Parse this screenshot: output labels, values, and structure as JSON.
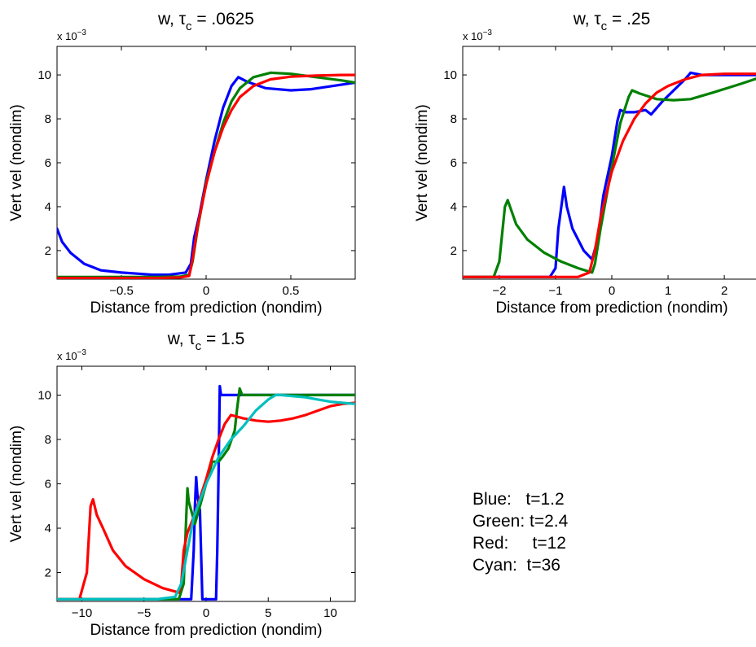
{
  "legend": [
    {
      "name": "Blue",
      "label": "Blue:   t=1.2",
      "color": "#0000ff"
    },
    {
      "name": "Green",
      "label": "Green: t=2.4",
      "color": "#008000"
    },
    {
      "name": "Red",
      "label": "Red:     t=12",
      "color": "#ff0000"
    },
    {
      "name": "Cyan",
      "label": "Cyan:  t=36",
      "color": "#00bfbf"
    }
  ],
  "chart_data": [
    {
      "type": "line",
      "title_main": "w, τ",
      "title_sub": "c",
      "title_tail": " = .0625",
      "xlabel": "Distance from prediction (nondim)",
      "ylabel": "Vert vel (nondim)",
      "exponent_label": "x 10",
      "exponent_power": "−3",
      "xlim": [
        -0.88,
        0.88
      ],
      "ylim": [
        0.7,
        11.3
      ],
      "xticks": [
        -0.5,
        0,
        0.5
      ],
      "xtick_labels": [
        "−0.5",
        "0",
        "0.5"
      ],
      "yticks": [
        2,
        4,
        6,
        8,
        10
      ],
      "ytick_labels": [
        "2",
        "4",
        "6",
        "8",
        "10"
      ],
      "series": [
        {
          "color": "#0000ff",
          "x": [
            -0.88,
            -0.85,
            -0.8,
            -0.72,
            -0.62,
            -0.5,
            -0.4,
            -0.32,
            -0.22,
            -0.12,
            -0.09,
            -0.07,
            -0.04,
            0,
            0.05,
            0.1,
            0.15,
            0.19,
            0.24,
            0.35,
            0.5,
            0.62,
            0.75,
            0.88
          ],
          "y": [
            3.0,
            2.4,
            1.9,
            1.4,
            1.1,
            1.0,
            0.95,
            0.9,
            0.9,
            1.0,
            1.4,
            2.6,
            3.6,
            5.2,
            7.0,
            8.5,
            9.5,
            9.9,
            9.7,
            9.4,
            9.3,
            9.35,
            9.5,
            9.65
          ]
        },
        {
          "color": "#008000",
          "x": [
            -0.88,
            -0.7,
            -0.5,
            -0.3,
            -0.15,
            -0.1,
            -0.08,
            -0.05,
            0,
            0.05,
            0.1,
            0.15,
            0.2,
            0.28,
            0.38,
            0.5,
            0.65,
            0.8,
            0.88
          ],
          "y": [
            0.8,
            0.8,
            0.8,
            0.8,
            0.82,
            0.9,
            1.5,
            3.0,
            5.1,
            6.5,
            7.8,
            8.8,
            9.4,
            9.9,
            10.1,
            10.05,
            9.9,
            9.75,
            9.65
          ]
        },
        {
          "color": "#ff0000",
          "x": [
            -0.88,
            -0.7,
            -0.5,
            -0.3,
            -0.15,
            -0.1,
            -0.08,
            -0.05,
            0,
            0.05,
            0.1,
            0.15,
            0.2,
            0.28,
            0.38,
            0.5,
            0.65,
            0.8,
            0.88
          ],
          "y": [
            0.75,
            0.75,
            0.75,
            0.75,
            0.78,
            0.85,
            1.6,
            3.1,
            5.0,
            6.5,
            7.6,
            8.4,
            9.0,
            9.5,
            9.8,
            9.92,
            9.97,
            10.0,
            10.0
          ]
        }
      ]
    },
    {
      "type": "line",
      "title_main": "w, τ",
      "title_sub": "c",
      "title_tail": " = .25",
      "xlabel": "Distance from prediction (nondim)",
      "ylabel": "Vert vel (nondim)",
      "exponent_label": "x 10",
      "exponent_power": "−3",
      "xlim": [
        -2.65,
        2.65
      ],
      "ylim": [
        0.7,
        11.3
      ],
      "xticks": [
        -2,
        -1,
        0,
        1,
        2
      ],
      "xtick_labels": [
        "−2",
        "−1",
        "0",
        "1",
        "2"
      ],
      "yticks": [
        2,
        4,
        6,
        8,
        10
      ],
      "ytick_labels": [
        "2",
        "4",
        "6",
        "8",
        "10"
      ],
      "series": [
        {
          "color": "#0000ff",
          "x": [
            -2.65,
            -1.5,
            -1.1,
            -1.0,
            -0.95,
            -0.85,
            -0.8,
            -0.7,
            -0.5,
            -0.35,
            -0.25,
            -0.15,
            0,
            0.1,
            0.15,
            0.25,
            0.4,
            0.6,
            0.7,
            0.9,
            1.1,
            1.3,
            1.4,
            1.6,
            2.0,
            2.65
          ],
          "y": [
            0.8,
            0.8,
            0.8,
            1.2,
            3.0,
            4.9,
            4.0,
            3.0,
            2.0,
            1.6,
            2.5,
            4.5,
            6.3,
            7.9,
            8.4,
            8.3,
            8.3,
            8.4,
            8.2,
            8.8,
            9.3,
            9.8,
            10.1,
            10.0,
            10.0,
            10.0
          ]
        },
        {
          "color": "#008000",
          "x": [
            -2.65,
            -2.1,
            -2.0,
            -1.9,
            -1.85,
            -1.7,
            -1.5,
            -1.2,
            -0.9,
            -0.6,
            -0.35,
            -0.3,
            -0.2,
            0,
            0.15,
            0.3,
            0.36,
            0.5,
            0.8,
            1.1,
            1.4,
            1.8,
            2.3,
            2.65
          ],
          "y": [
            0.8,
            0.8,
            1.5,
            4.0,
            4.3,
            3.2,
            2.5,
            1.9,
            1.5,
            1.2,
            1.0,
            1.4,
            3.0,
            5.8,
            7.8,
            9.0,
            9.3,
            9.15,
            8.9,
            8.85,
            8.9,
            9.2,
            9.6,
            9.9
          ]
        },
        {
          "color": "#ff0000",
          "x": [
            -2.65,
            -1.5,
            -0.6,
            -0.4,
            -0.3,
            -0.2,
            0,
            0.2,
            0.4,
            0.6,
            0.8,
            1.0,
            1.3,
            1.6,
            2.0,
            2.4,
            2.65
          ],
          "y": [
            0.8,
            0.8,
            0.8,
            1.0,
            2.0,
            3.5,
            5.6,
            7.0,
            8.0,
            8.7,
            9.2,
            9.5,
            9.8,
            10.0,
            10.05,
            10.05,
            10.05
          ]
        }
      ]
    },
    {
      "type": "line",
      "title_main": "w, τ",
      "title_sub": "c",
      "title_tail": " = 1.5",
      "xlabel": "Distance from prediction (nondim)",
      "ylabel": "Vert vel (nondim)",
      "exponent_label": "x 10",
      "exponent_power": "−3",
      "xlim": [
        -12,
        12
      ],
      "ylim": [
        0.7,
        11.3
      ],
      "xticks": [
        -10,
        -5,
        0,
        5,
        10
      ],
      "xtick_labels": [
        "−10",
        "−5",
        "0",
        "5",
        "10"
      ],
      "yticks": [
        2,
        4,
        6,
        8,
        10
      ],
      "ytick_labels": [
        "2",
        "4",
        "6",
        "8",
        "10"
      ],
      "series": [
        {
          "color": "#0000ff",
          "x": [
            -12,
            -2,
            -1.2,
            -1.0,
            -0.9,
            -0.8,
            -0.7,
            -0.5,
            -0.3,
            0.3,
            0.6,
            0.8,
            0.9,
            1.0,
            1.1,
            1.2,
            1.4,
            3,
            6,
            12
          ],
          "y": [
            0.8,
            0.8,
            0.8,
            3.0,
            5.0,
            6.3,
            5.5,
            4.8,
            0.8,
            0.8,
            0.8,
            0.8,
            3.0,
            6.5,
            10.4,
            10.0,
            10.0,
            10.0,
            10.0,
            10.0
          ]
        },
        {
          "color": "#008000",
          "x": [
            -12,
            -3,
            -2.2,
            -1.8,
            -1.6,
            -1.5,
            -1.4,
            -1.2,
            -0.9,
            -0.5,
            0,
            0.5,
            1.0,
            1.3,
            1.8,
            2.3,
            2.5,
            2.7,
            2.9,
            3.5,
            6,
            12
          ],
          "y": [
            0.8,
            0.8,
            0.8,
            1.5,
            4.5,
            5.8,
            5.2,
            4.8,
            4.2,
            5.0,
            6.0,
            7.0,
            7.0,
            7.2,
            7.6,
            8.4,
            9.4,
            10.3,
            10.0,
            10.0,
            10.0,
            10.0
          ]
        },
        {
          "color": "#ff0000",
          "x": [
            -12,
            -10.2,
            -9.6,
            -9.3,
            -9.1,
            -8.8,
            -8.3,
            -7.5,
            -6.5,
            -5,
            -3.5,
            -2.2,
            -2,
            -1.8,
            -1.5,
            -1,
            0,
            0.5,
            1.0,
            1.5,
            2,
            3,
            4,
            5,
            6,
            7,
            8,
            9,
            10,
            11,
            12
          ],
          "y": [
            0.8,
            0.8,
            2.0,
            5.0,
            5.3,
            4.6,
            4.0,
            3.0,
            2.3,
            1.7,
            1.3,
            1.1,
            1.5,
            3.0,
            3.8,
            4.5,
            6.2,
            7.2,
            8.0,
            8.7,
            9.1,
            8.95,
            8.85,
            8.8,
            8.85,
            8.95,
            9.1,
            9.3,
            9.5,
            9.6,
            9.65
          ]
        },
        {
          "color": "#00bfbf",
          "x": [
            -12,
            -4,
            -2.5,
            -2,
            -1.5,
            -1,
            0,
            1,
            2,
            3,
            4,
            5,
            5.6,
            6,
            7,
            8,
            9,
            10,
            11,
            12
          ],
          "y": [
            0.8,
            0.8,
            0.9,
            1.5,
            3.0,
            4.5,
            6.0,
            7.2,
            8.0,
            8.6,
            9.3,
            9.8,
            10.0,
            10.0,
            9.95,
            9.9,
            9.8,
            9.7,
            9.65,
            9.6
          ]
        }
      ]
    }
  ]
}
